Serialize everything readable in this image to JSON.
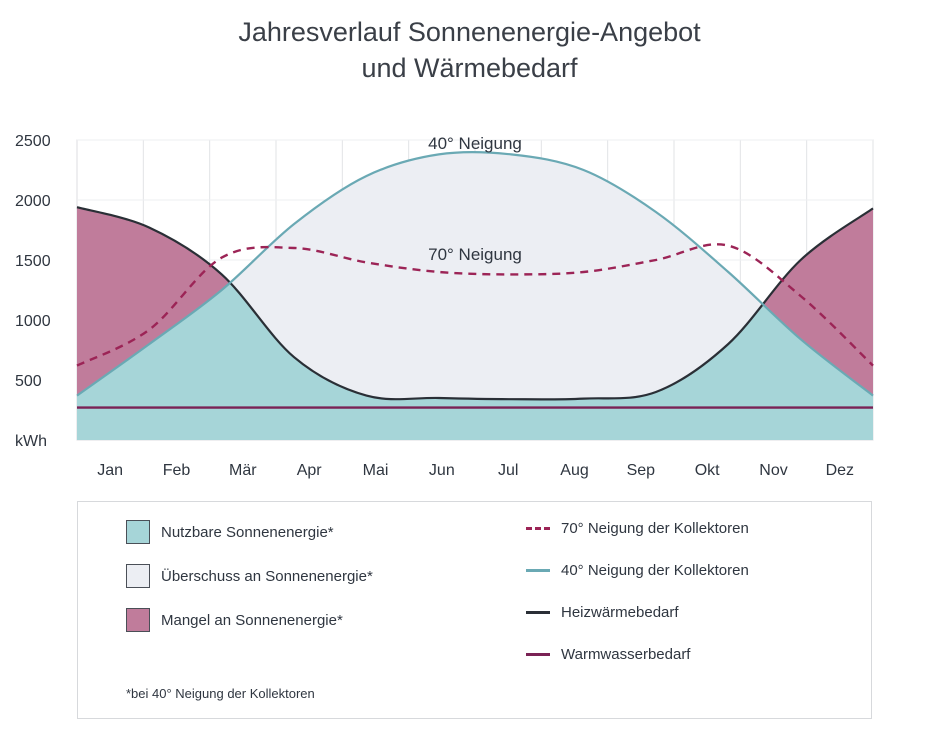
{
  "chart_data": {
    "type": "area",
    "title": "Jahresverlauf Sonnenenergie-Angebot und Wärmebedarf",
    "title_lines": [
      "Jahresverlauf Sonnenenergie-Angebot",
      "und Wärmebedarf"
    ],
    "categories": [
      "Jan",
      "Feb",
      "Mär",
      "Apr",
      "Mai",
      "Jun",
      "Jul",
      "Aug",
      "Sep",
      "Okt",
      "Nov",
      "Dez"
    ],
    "x": [
      0,
      1,
      2,
      3,
      4,
      5,
      6,
      7,
      8,
      9,
      10,
      11
    ],
    "y_ticks": [
      500,
      1000,
      1500,
      2000,
      2500
    ],
    "y_unit": "kWh",
    "ylim": [
      0,
      2500
    ],
    "grid": true,
    "series": [
      {
        "name": "70° Neigung der Kollektoren",
        "style": "dashed",
        "color": "#9c2456",
        "values": [
          620,
          920,
          1520,
          1600,
          1480,
          1400,
          1380,
          1400,
          1500,
          1620,
          1200,
          620
        ]
      },
      {
        "name": "40° Neigung der Kollektoren",
        "style": "solid",
        "color": "#6aa9b4",
        "values": [
          370,
          800,
          1250,
          1800,
          2200,
          2380,
          2380,
          2250,
          1900,
          1400,
          840,
          370
        ]
      },
      {
        "name": "Heizwärmebedarf",
        "style": "solid",
        "color": "#2a2f36",
        "values": [
          1940,
          1770,
          1380,
          690,
          370,
          350,
          340,
          345,
          400,
          800,
          1500,
          1930
        ]
      },
      {
        "name": "Warmwasserbedarf",
        "style": "solid",
        "color": "#7a2255",
        "values": [
          270,
          270,
          270,
          270,
          270,
          270,
          270,
          270,
          270,
          270,
          270,
          270
        ]
      }
    ],
    "annotations": [
      {
        "text": "40° Neigung",
        "x": 5.5,
        "y": 2500
      },
      {
        "text": "70° Neigung",
        "x": 5.5,
        "y": 1550
      }
    ],
    "areas": [
      {
        "name": "Nutzbare Sonnenenergie*",
        "color": "#a6d5d8"
      },
      {
        "name": "Überschuss an Sonnenenergie*",
        "color": "#eceef3"
      },
      {
        "name": "Mangel an Sonnenenergie*",
        "color": "#c07c9b"
      }
    ]
  },
  "legend": {
    "left": [
      {
        "label": "Nutzbare Sonnenenergie*",
        "color": "#a6d5d8"
      },
      {
        "label": "Überschuss an Sonnenenergie*",
        "color": "#eceef3"
      },
      {
        "label": "Mangel an Sonnenenergie*",
        "color": "#c07c9b"
      }
    ],
    "right": [
      {
        "label": "70° Neigung der Kollektoren",
        "color": "#9c2456",
        "style": "dashed"
      },
      {
        "label": "40° Neigung der Kollektoren",
        "color": "#6aa9b4",
        "style": "solid"
      },
      {
        "label": "Heizwärmebedarf",
        "color": "#2a2f36",
        "style": "solid"
      },
      {
        "label": "Warmwasserbedarf",
        "color": "#7a2255",
        "style": "solid"
      }
    ],
    "footnote": "*bei 40° Neigung der Kollektoren"
  }
}
